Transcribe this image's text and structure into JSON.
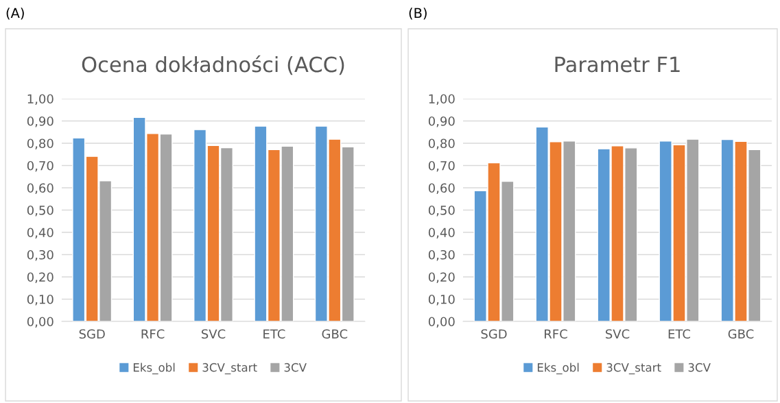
{
  "chart_data": [
    {
      "type": "bar",
      "title": "Ocena dokładności (ACC)",
      "annotations": [
        "(A)"
      ],
      "categories": [
        "SGD",
        "RFC",
        "SVC",
        "ETC",
        "GBC"
      ],
      "series": [
        {
          "name": "Eks_obl",
          "color": "#5b9bd5",
          "values": [
            0.824,
            0.916,
            0.861,
            0.877,
            0.877
          ]
        },
        {
          "name": "3CV_start",
          "color": "#ed7d31",
          "values": [
            0.741,
            0.844,
            0.79,
            0.771,
            0.818
          ]
        },
        {
          "name": "3CV",
          "color": "#a5a5a5",
          "values": [
            0.631,
            0.841,
            0.78,
            0.787,
            0.784
          ]
        }
      ],
      "ylim": [
        0,
        1
      ],
      "yticks": [
        {
          "value": 0,
          "label": "0,00"
        },
        {
          "value": 0.1,
          "label": "0,10"
        },
        {
          "value": 0.2,
          "label": "0,20"
        },
        {
          "value": 0.3,
          "label": "0,30"
        },
        {
          "value": 0.4,
          "label": "0,40"
        },
        {
          "value": 0.5,
          "label": "0,50"
        },
        {
          "value": 0.6,
          "label": "0,60"
        },
        {
          "value": 0.7,
          "label": "0,70"
        },
        {
          "value": 0.8,
          "label": "0,80"
        },
        {
          "value": 0.9,
          "label": "0,90"
        },
        {
          "value": 1,
          "label": "1,00"
        }
      ],
      "grid": "y",
      "legend": "bottom"
    },
    {
      "type": "bar",
      "title": "Parametr F1",
      "annotations": [
        "(B)"
      ],
      "categories": [
        "SGD",
        "RFC",
        "SVC",
        "ETC",
        "GBC"
      ],
      "series": [
        {
          "name": "Eks_obl",
          "color": "#5b9bd5",
          "values": [
            0.587,
            0.873,
            0.775,
            0.81,
            0.817
          ]
        },
        {
          "name": "3CV_start",
          "color": "#ed7d31",
          "values": [
            0.712,
            0.807,
            0.788,
            0.793,
            0.808
          ]
        },
        {
          "name": "3CV",
          "color": "#a5a5a5",
          "values": [
            0.629,
            0.81,
            0.779,
            0.818,
            0.771
          ]
        }
      ],
      "ylim": [
        0,
        1
      ],
      "yticks": [
        {
          "value": 0,
          "label": "0,00"
        },
        {
          "value": 0.1,
          "label": "0,10"
        },
        {
          "value": 0.2,
          "label": "0,20"
        },
        {
          "value": 0.3,
          "label": "0,30"
        },
        {
          "value": 0.4,
          "label": "0,40"
        },
        {
          "value": 0.5,
          "label": "0,50"
        },
        {
          "value": 0.6,
          "label": "0,60"
        },
        {
          "value": 0.7,
          "label": "0,70"
        },
        {
          "value": 0.8,
          "label": "0,80"
        },
        {
          "value": 0.9,
          "label": "0,90"
        },
        {
          "value": 1,
          "label": "1,00"
        }
      ],
      "grid": "y",
      "legend": "bottom"
    }
  ]
}
